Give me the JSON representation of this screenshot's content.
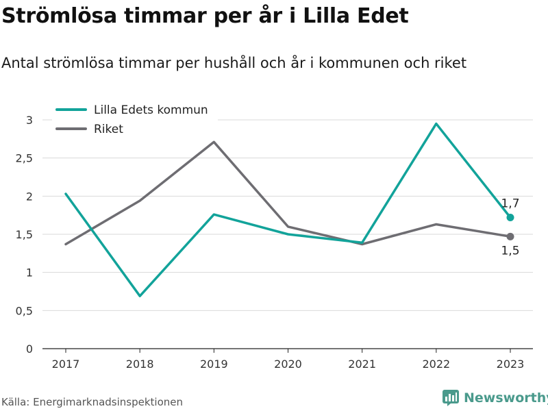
{
  "title": "Strömlösa timmar per år i Lilla Edet",
  "subtitle": "Antal strömlösa timmar per hushåll och år i kommunen och riket",
  "source": "Källa: Energimarknadsinspektionen",
  "brand": {
    "name": "Newsworthy",
    "icon": "newsworthy-logo-icon",
    "color": "#4a9a8c"
  },
  "chart_data": {
    "type": "line",
    "x": [
      "2017",
      "2018",
      "2019",
      "2020",
      "2021",
      "2022",
      "2023"
    ],
    "ylim": [
      0,
      3
    ],
    "yticks": [
      0,
      0.5,
      1,
      1.5,
      2,
      2.5,
      3
    ],
    "ytick_labels": [
      "0",
      "0,5",
      "1",
      "1,5",
      "2",
      "2,5",
      "3"
    ],
    "grid": true,
    "legend_position": "top-left",
    "series": [
      {
        "name": "Lilla Edets kommun",
        "color": "#12a39a",
        "values": [
          2.03,
          0.69,
          1.76,
          1.5,
          1.39,
          2.95,
          1.72
        ],
        "end_label": "1,7"
      },
      {
        "name": "Riket",
        "color": "#6e6d72",
        "values": [
          1.37,
          1.94,
          2.71,
          1.6,
          1.37,
          1.63,
          1.47
        ],
        "end_label": "1,5"
      }
    ]
  }
}
